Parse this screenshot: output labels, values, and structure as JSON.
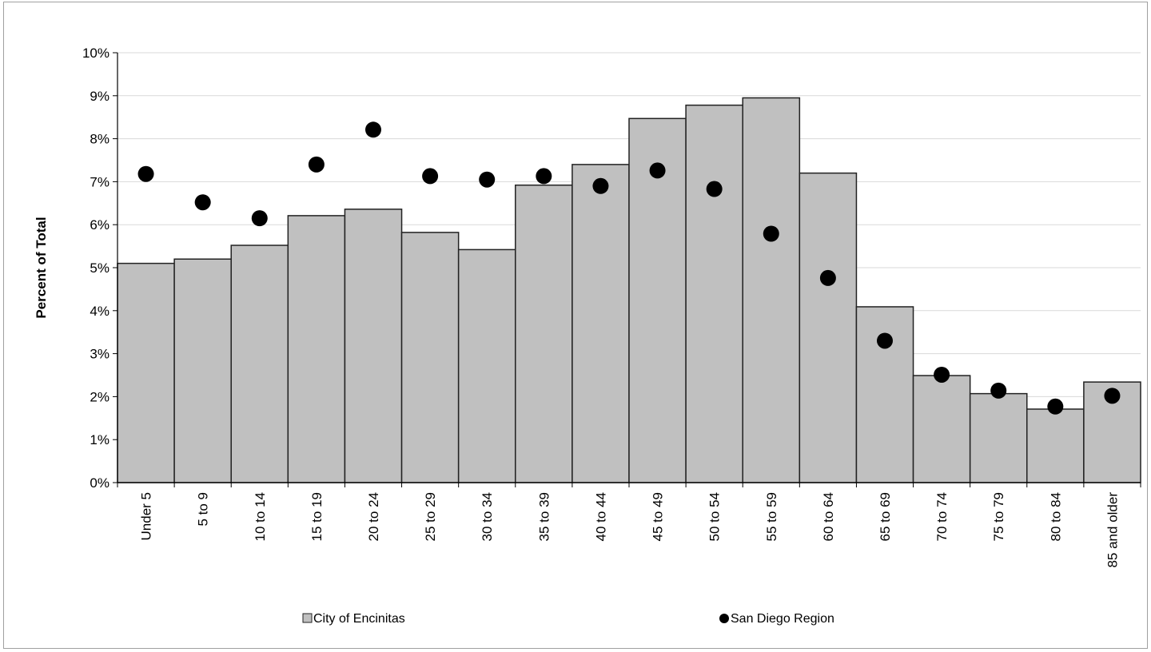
{
  "chart_data": {
    "type": "bar",
    "categories": [
      "Under 5",
      "5 to 9",
      "10 to 14",
      "15 to 19",
      "20 to 24",
      "25 to 29",
      "30 to 34",
      "35 to 39",
      "40 to 44",
      "45 to 49",
      "50 to 54",
      "55 to 59",
      "60 to 64",
      "65 to 69",
      "70 to 74",
      "75 to 79",
      "80 to 84",
      "85 and older"
    ],
    "series": [
      {
        "name": "City of Encinitas",
        "mark": "bar",
        "color": "#c0c0c0",
        "values": [
          5.1,
          5.2,
          5.52,
          6.21,
          6.36,
          5.82,
          5.42,
          6.92,
          7.4,
          8.47,
          8.78,
          8.95,
          7.2,
          4.09,
          2.49,
          2.07,
          1.71,
          2.34
        ]
      },
      {
        "name": "San Diego Region",
        "mark": "dot",
        "color": "#000000",
        "values": [
          7.18,
          6.52,
          6.15,
          7.4,
          8.21,
          7.13,
          7.05,
          7.13,
          6.9,
          7.26,
          6.83,
          5.79,
          4.76,
          3.3,
          2.51,
          2.14,
          1.77,
          2.02
        ]
      }
    ],
    "ylabel": "Percent of Total",
    "xlabel": "",
    "ylim": [
      0,
      10
    ],
    "yticks": [
      "0%",
      "1%",
      "2%",
      "3%",
      "4%",
      "5%",
      "6%",
      "7%",
      "8%",
      "9%",
      "10%"
    ],
    "grid": true,
    "legend_position": "bottom"
  }
}
